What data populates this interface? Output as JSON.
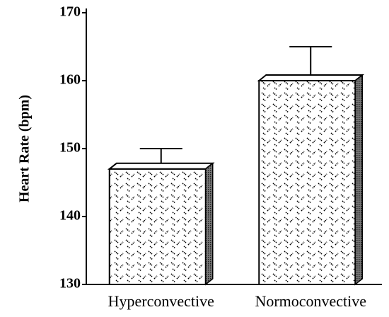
{
  "chart_data": {
    "type": "bar",
    "y_label": "Heart Rate (bpm)",
    "categories": [
      "Hyperconvective",
      "Normoconvective"
    ],
    "values": [
      147,
      160
    ],
    "errors": [
      3,
      5
    ],
    "color": "#ffffff",
    "ylim": [
      130,
      170
    ],
    "yticks": [
      130,
      140,
      150,
      160,
      170
    ],
    "grid": false
  }
}
